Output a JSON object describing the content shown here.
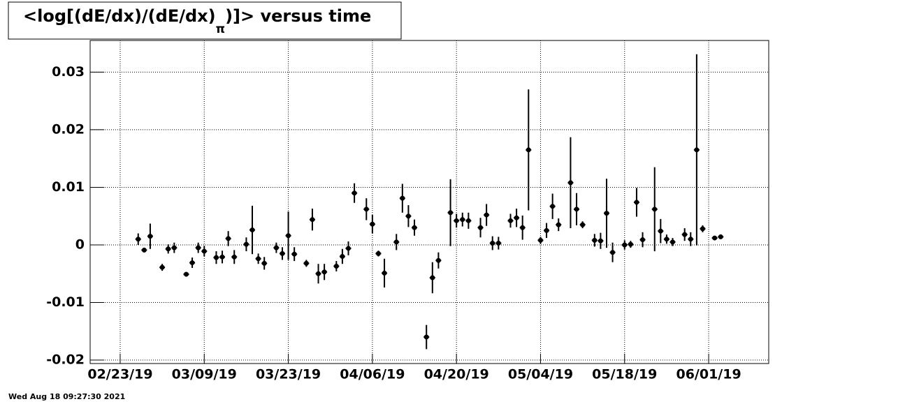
{
  "chart_data": {
    "type": "errorbar",
    "title": "<log[(dE/dx)/(dE/dx)",
    "title_subscript": "π",
    "title_end": ")]> versus time",
    "footer": "Wed Aug 18 09:27:30 2021",
    "x": [
      "2019-02-26",
      "2019-02-27",
      "2019-02-28",
      "2019-03-02",
      "2019-03-03",
      "2019-03-04",
      "2019-03-06",
      "2019-03-07",
      "2019-03-08",
      "2019-03-09",
      "2019-03-11",
      "2019-03-12",
      "2019-03-13",
      "2019-03-14",
      "2019-03-16",
      "2019-03-17",
      "2019-03-18",
      "2019-03-19",
      "2019-03-21",
      "2019-03-22",
      "2019-03-23",
      "2019-03-24",
      "2019-03-26",
      "2019-03-27",
      "2019-03-28",
      "2019-03-29",
      "2019-03-31",
      "2019-04-01",
      "2019-04-02",
      "2019-04-03",
      "2019-04-05",
      "2019-04-06",
      "2019-04-07",
      "2019-04-08",
      "2019-04-10",
      "2019-04-11",
      "2019-04-12",
      "2019-04-13",
      "2019-04-15",
      "2019-04-16",
      "2019-04-17",
      "2019-04-19",
      "2019-04-20",
      "2019-04-21",
      "2019-04-22",
      "2019-04-24",
      "2019-04-25",
      "2019-04-26",
      "2019-04-27",
      "2019-04-29",
      "2019-04-30",
      "2019-05-01",
      "2019-05-02",
      "2019-05-04",
      "2019-05-05",
      "2019-05-06",
      "2019-05-07",
      "2019-05-09",
      "2019-05-10",
      "2019-05-11",
      "2019-05-13",
      "2019-05-14",
      "2019-05-15",
      "2019-05-16",
      "2019-05-18",
      "2019-05-19",
      "2019-05-20",
      "2019-05-21",
      "2019-05-23",
      "2019-05-24",
      "2019-05-25",
      "2019-05-26",
      "2019-05-28",
      "2019-05-29",
      "2019-05-30",
      "2019-05-31",
      "2019-06-02",
      "2019-06-03"
    ],
    "values": [
      0.001,
      -0.0009,
      0.0015,
      -0.0039,
      -0.0007,
      -0.0005,
      -0.0051,
      -0.0031,
      -0.0005,
      -0.0011,
      -0.0022,
      -0.0021,
      0.0011,
      -0.0021,
      0.0001,
      0.0026,
      -0.0024,
      -0.0032,
      -0.0005,
      -0.0015,
      0.0016,
      -0.0016,
      -0.0032,
      0.0044,
      -0.005,
      -0.0047,
      -0.0037,
      -0.002,
      -0.0006,
      0.009,
      0.0062,
      0.0036,
      -0.0015,
      -0.0049,
      0.0005,
      0.0081,
      0.005,
      0.003,
      -0.016,
      -0.0057,
      -0.0027,
      0.0056,
      0.0042,
      0.0044,
      0.0042,
      0.003,
      0.0052,
      0.0003,
      0.0003,
      0.0042,
      0.0047,
      0.003,
      0.0165,
      0.0008,
      0.0025,
      0.0067,
      0.0035,
      0.0108,
      0.0062,
      0.0035,
      0.0008,
      0.0007,
      0.0055,
      -0.0013,
      0.0,
      0.0001,
      0.0074,
      0.0009,
      0.0062,
      0.0024,
      0.001,
      0.0005,
      0.0018,
      0.001,
      0.0165,
      0.0028,
      0.0012,
      0.0014
    ],
    "errors": [
      0.001,
      0.0004,
      0.0022,
      0.0006,
      0.0008,
      0.0009,
      0.0004,
      0.0009,
      0.0009,
      0.0009,
      0.0011,
      0.0011,
      0.0013,
      0.0012,
      0.0012,
      0.0042,
      0.0009,
      0.0011,
      0.0009,
      0.0011,
      0.0042,
      0.0012,
      0.0006,
      0.0019,
      0.0017,
      0.0014,
      0.0009,
      0.0013,
      0.0012,
      0.0017,
      0.0019,
      0.0016,
      0.0005,
      0.0025,
      0.0014,
      0.0025,
      0.0019,
      0.0014,
      0.0021,
      0.0027,
      0.0014,
      0.0058,
      0.0012,
      0.0012,
      0.0014,
      0.0017,
      0.0019,
      0.0012,
      0.0011,
      0.0012,
      0.0016,
      0.0021,
      0.0105,
      0.0006,
      0.0013,
      0.0022,
      0.0011,
      0.0079,
      0.0028,
      0.0006,
      0.0011,
      0.0014,
      0.006,
      0.0017,
      0.0008,
      0.0006,
      0.0025,
      0.0013,
      0.0073,
      0.0021,
      0.0008,
      0.0007,
      0.0011,
      0.0012,
      0.0166,
      0.0006,
      0.0003,
      0.0003
    ],
    "color": "#000000",
    "xlim": [
      "2019-02-18",
      "2019-06-11"
    ],
    "xticks": [
      {
        "value": "2019-02-23",
        "label": "02/23/19"
      },
      {
        "value": "2019-03-09",
        "label": "03/09/19"
      },
      {
        "value": "2019-03-23",
        "label": "03/23/19"
      },
      {
        "value": "2019-04-06",
        "label": "04/06/19"
      },
      {
        "value": "2019-04-20",
        "label": "04/20/19"
      },
      {
        "value": "2019-05-04",
        "label": "05/04/19"
      },
      {
        "value": "2019-05-18",
        "label": "05/18/19"
      },
      {
        "value": "2019-06-01",
        "label": "06/01/19"
      }
    ],
    "ylim": [
      -0.0206,
      0.0355
    ],
    "yticks": [
      -0.02,
      -0.01,
      0,
      0.01,
      0.02,
      0.03
    ],
    "grid": true
  }
}
